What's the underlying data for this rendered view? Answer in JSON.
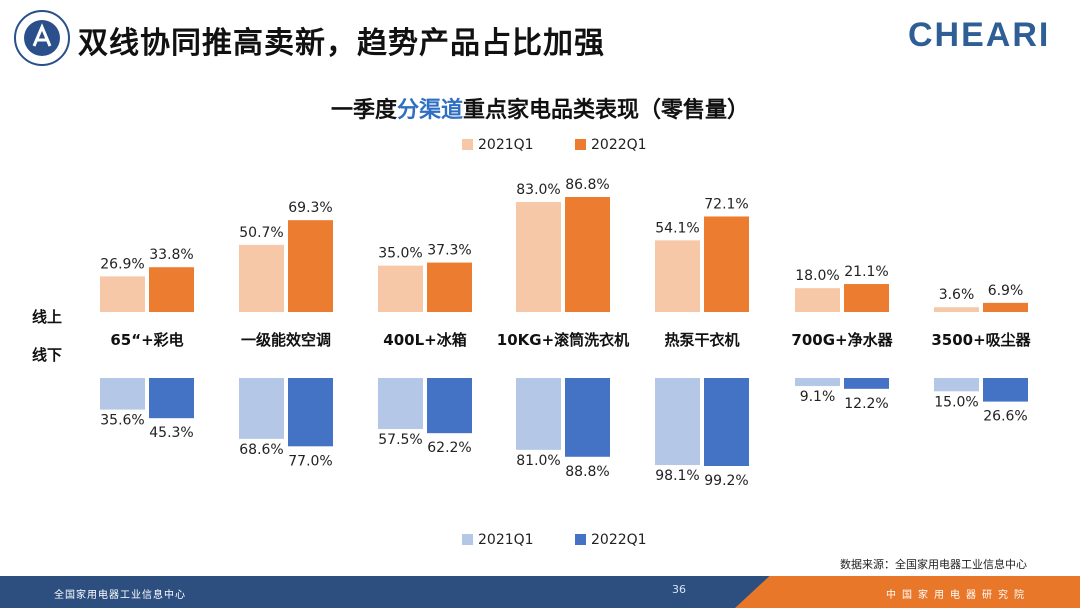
{
  "slide": {
    "title": "双线协同推高卖新，趋势产品占比加强",
    "brand": "CHEARI",
    "source": "数据来源：全国家用电器工业信息中心",
    "page_number": "36"
  },
  "footer": {
    "left_text": "全国家用电器工业信息中心",
    "right_text": "中国家用电器研究院"
  },
  "colors": {
    "online_2021": "#f7c8a8",
    "online_2022": "#ec7c30",
    "offline_2021": "#b4c7e7",
    "offline_2022": "#4472c4",
    "footer_blue": "#2c4f80",
    "footer_orange": "#e8772a",
    "title_accent": "#2e6fc4"
  },
  "chart_data": {
    "type": "bar",
    "title_parts": [
      "一季度",
      "分渠道",
      "重点家电品类表现（零售量）"
    ],
    "categories": [
      "65“+彩电",
      "一级能效空调",
      "400L+冰箱",
      "10KG+滚筒洗衣机",
      "热泵干衣机",
      "700G+净水器",
      "3500+吸尘器"
    ],
    "online_label": "线上",
    "offline_label": "线下",
    "online_series": [
      {
        "name": "2021Q1",
        "values": [
          26.9,
          50.7,
          35.0,
          83.0,
          54.1,
          18.0,
          3.6
        ]
      },
      {
        "name": "2022Q1",
        "values": [
          33.8,
          69.3,
          37.3,
          86.8,
          72.1,
          21.1,
          6.9
        ]
      }
    ],
    "offline_series": [
      {
        "name": "2021Q1",
        "values": [
          35.6,
          68.6,
          57.5,
          81.0,
          98.1,
          9.1,
          15.0
        ]
      },
      {
        "name": "2022Q1",
        "values": [
          45.3,
          77.0,
          62.2,
          88.8,
          99.2,
          12.2,
          26.6
        ]
      }
    ],
    "value_unit": "%",
    "legend_top": [
      "2021Q1",
      "2022Q1"
    ],
    "legend_bottom": [
      "2021Q1",
      "2022Q1"
    ]
  }
}
